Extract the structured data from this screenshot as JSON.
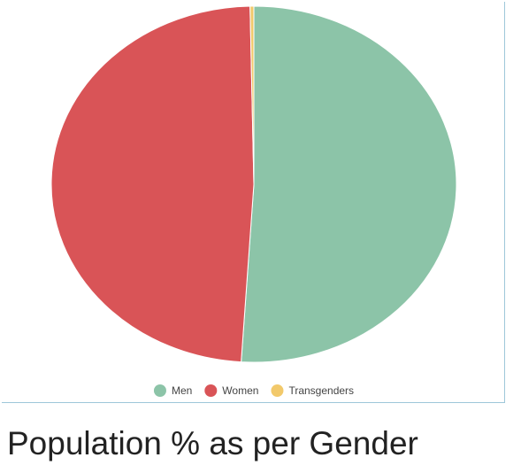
{
  "chart_data": {
    "type": "pie",
    "title": "Population % as per Gender",
    "categories": [
      "Men",
      "Women",
      "Transgenders"
    ],
    "values": [
      51,
      48.7,
      0.3
    ],
    "colors": [
      "#8cc4a8",
      "#d95457",
      "#f2c96b"
    ],
    "legend": "bottom"
  }
}
